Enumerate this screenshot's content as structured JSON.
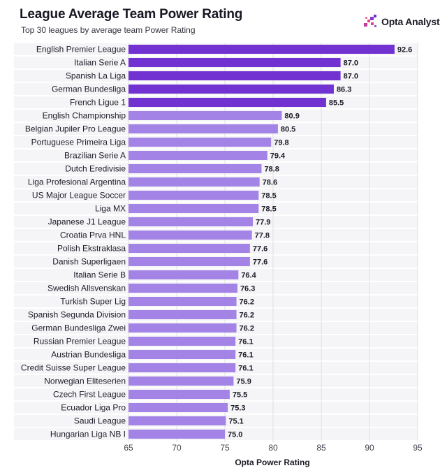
{
  "header": {
    "title": "League Average Team Power Rating",
    "subtitle": "Top 30 leagues by average team Power Rating"
  },
  "brand": {
    "name": "Opta Analyst",
    "icon": "opta-analyst-logo-icon"
  },
  "colors": {
    "top5": "#7232d2",
    "rest": "#a384e6",
    "label": "#1c1c28",
    "tick": "#444450",
    "grid": "#e0e0e0"
  },
  "chart_data": {
    "type": "bar",
    "orientation": "horizontal",
    "categories": [
      "English Premier League",
      "Italian Serie A",
      "Spanish La Liga",
      "German Bundesliga",
      "French Ligue 1",
      "English Championship",
      "Belgian Jupiler Pro League",
      "Portuguese Primeira Liga",
      "Brazilian Serie A",
      "Dutch Eredivisie",
      "Liga Profesional Argentina",
      "US Major League Soccer",
      "Liga MX",
      "Japanese J1 League",
      "Croatia Prva HNL",
      "Polish Ekstraklasa",
      "Danish Superligaen",
      "Italian Serie B",
      "Swedish Allsvenskan",
      "Turkish Super Lig",
      "Spanish Segunda Division",
      "German Bundesliga Zwei",
      "Russian Premier League",
      "Austrian Bundesliga",
      "Credit Suisse Super League",
      "Norwegian Eliteserien",
      "Czech First League",
      "Ecuador Liga Pro",
      "Saudi League",
      "Hungarian Liga NB I"
    ],
    "values": [
      92.6,
      87.0,
      87.0,
      86.3,
      85.5,
      80.9,
      80.5,
      79.8,
      79.4,
      78.8,
      78.6,
      78.5,
      78.5,
      77.9,
      77.8,
      77.6,
      77.6,
      76.4,
      76.3,
      76.2,
      76.2,
      76.2,
      76.1,
      76.1,
      76.1,
      75.9,
      75.5,
      75.3,
      75.1,
      75.0
    ],
    "value_labels": [
      "92.6",
      "87.0",
      "87.0",
      "86.3",
      "85.5",
      "80.9",
      "80.5",
      "79.8",
      "79.4",
      "78.8",
      "78.6",
      "78.5",
      "78.5",
      "77.9",
      "77.8",
      "77.6",
      "77.6",
      "76.4",
      "76.3",
      "76.2",
      "76.2",
      "76.2",
      "76.1",
      "76.1",
      "76.1",
      "75.9",
      "75.5",
      "75.3",
      "75.1",
      "75.0"
    ],
    "highlighted_top": 5,
    "xlabel": "Opta Power Rating",
    "ylabel": "",
    "xlim": [
      65,
      95
    ],
    "xticks": [
      65,
      70,
      75,
      80,
      85,
      90,
      95
    ],
    "grid": true,
    "legend": "none"
  }
}
